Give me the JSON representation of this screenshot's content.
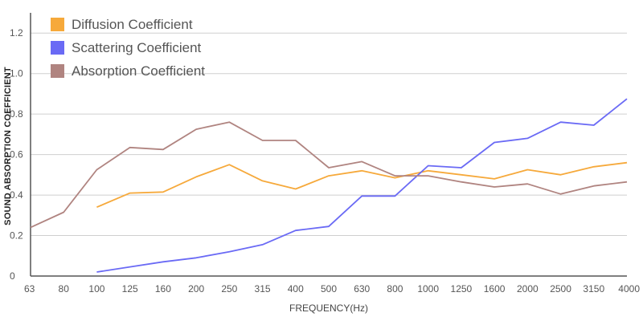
{
  "chart_data": {
    "type": "line",
    "title": "",
    "xlabel": "FREQUENCY(Hz)",
    "ylabel": "SOUND ABSORPTION COEFFICIENT",
    "categories": [
      "63",
      "80",
      "100",
      "125",
      "160",
      "200",
      "250",
      "315",
      "400",
      "500",
      "630",
      "800",
      "1000",
      "1250",
      "1600",
      "2000",
      "2500",
      "3150",
      "4000"
    ],
    "yticks": [
      "0",
      "0.2",
      "0.4",
      "0.6",
      "0.8",
      "1.0",
      "1.2"
    ],
    "ylim": [
      0,
      1.3
    ],
    "grid": true,
    "legend_position": "top-left",
    "series": [
      {
        "name": "Diffusion  Coefficient",
        "color": "#F6A93B",
        "values": [
          null,
          null,
          0.34,
          0.41,
          0.415,
          0.49,
          0.55,
          0.47,
          0.43,
          0.495,
          0.52,
          0.485,
          0.52,
          0.5,
          0.48,
          0.525,
          0.5,
          0.54,
          0.56
        ]
      },
      {
        "name": "Scattering  Coefficient",
        "color": "#6A6AF5",
        "values": [
          null,
          null,
          0.02,
          0.045,
          0.07,
          0.09,
          0.12,
          0.155,
          0.225,
          0.245,
          0.395,
          0.395,
          0.545,
          0.535,
          0.66,
          0.68,
          0.76,
          0.745,
          0.875
        ]
      },
      {
        "name": "Absorption  Coefficient",
        "color": "#B08480",
        "values": [
          0.24,
          0.315,
          0.525,
          0.635,
          0.625,
          0.725,
          0.76,
          0.67,
          0.67,
          0.535,
          0.565,
          0.495,
          0.495,
          0.465,
          0.44,
          0.455,
          0.405,
          0.445,
          0.465
        ]
      }
    ]
  }
}
